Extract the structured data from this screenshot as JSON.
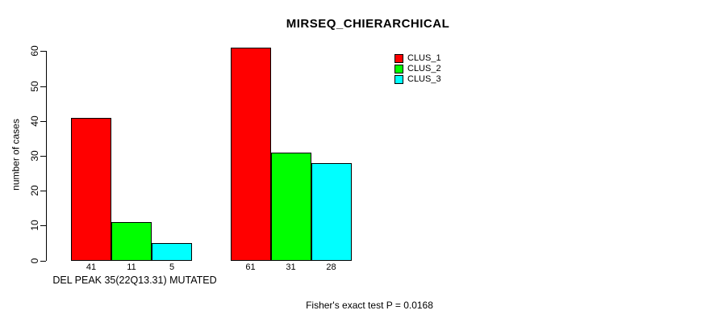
{
  "title": "MIRSEQ_CHIERARCHICAL",
  "chart_data": {
    "type": "bar",
    "title": "MIRSEQ_CHIERARCHICAL",
    "categories": [
      "DEL PEAK 35(22Q13.31) MUTATED",
      ""
    ],
    "series": [
      {
        "name": "CLUS_1",
        "color": "#FF0000",
        "values": [
          41,
          61
        ]
      },
      {
        "name": "CLUS_2",
        "color": "#00FF00",
        "values": [
          11,
          31
        ]
      },
      {
        "name": "CLUS_3",
        "color": "#00FFFF",
        "values": [
          5,
          28
        ]
      }
    ],
    "bar_value_labels": [
      [
        41,
        11,
        5
      ],
      [
        61,
        31,
        28
      ]
    ],
    "ylabel": "number of cases",
    "xlabel": "",
    "ylim": [
      0,
      60
    ],
    "yticks": [
      0,
      10,
      20,
      30,
      40,
      50,
      60
    ],
    "grid": false,
    "legend_position": "top-right-inside",
    "legend_entries": [
      "CLUS_1",
      "CLUS_2",
      "CLUS_3"
    ],
    "annotation": "Fisher's exact test P = 0.0168",
    "background_color": "#FFFFFF",
    "axis_color": "#000000",
    "text_color": "#000000"
  }
}
